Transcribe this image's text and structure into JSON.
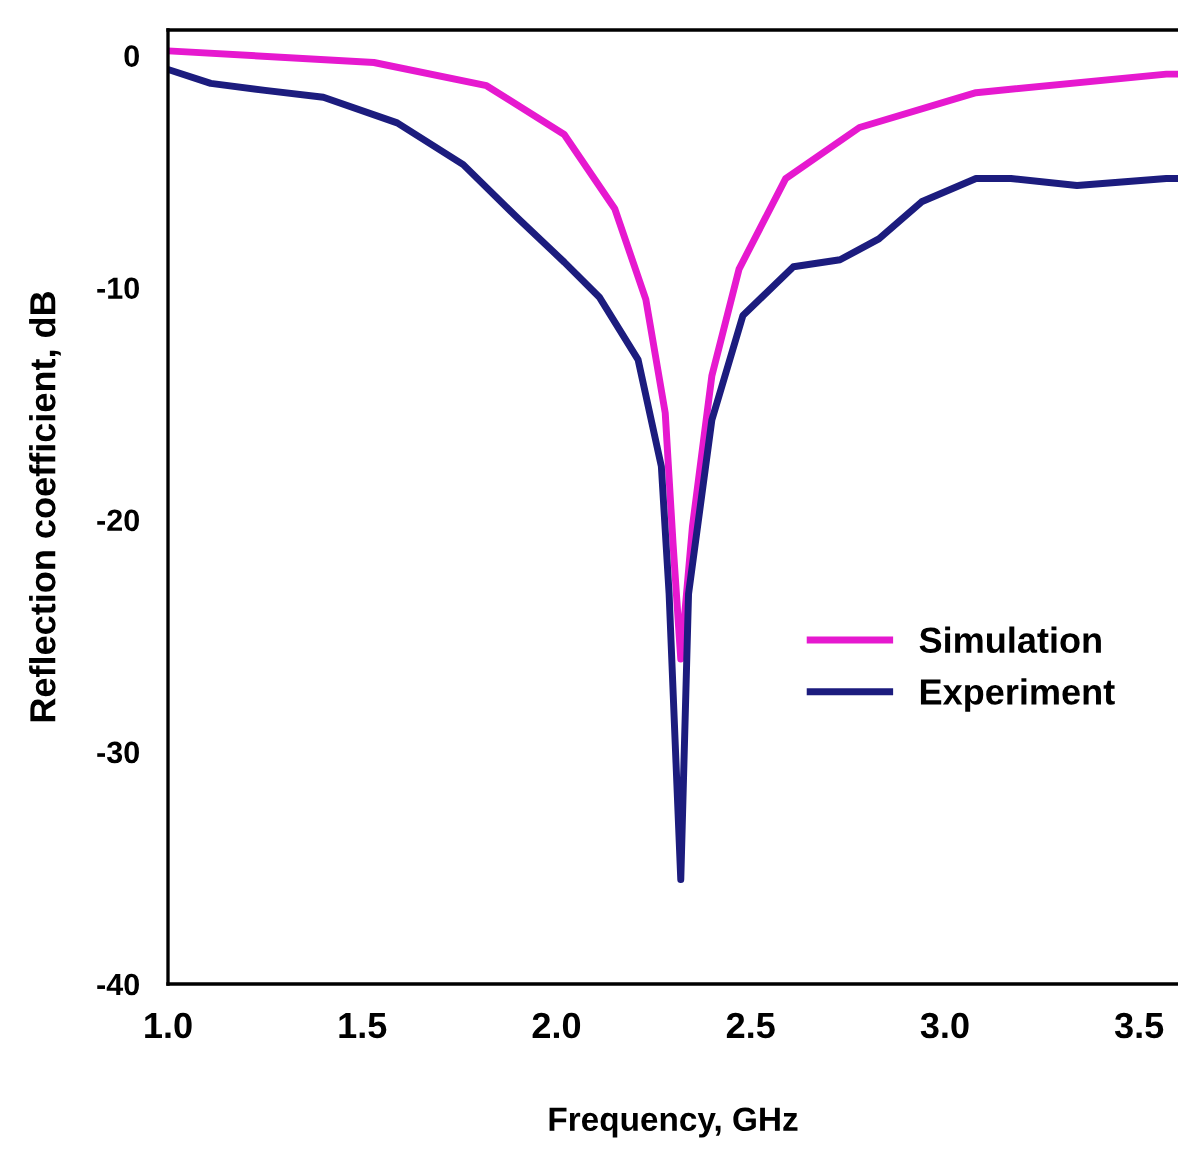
{
  "chart_data": {
    "type": "line",
    "xlabel": "Frequency, GHz",
    "ylabel": "Reflection coefficient, dB",
    "xlim": [
      1.0,
      3.6
    ],
    "ylim": [
      -40,
      1.1
    ],
    "xticks": [
      {
        "value": 1.0,
        "label": "1.0"
      },
      {
        "value": 1.5,
        "label": "1.5"
      },
      {
        "value": 2.0,
        "label": "2.0"
      },
      {
        "value": 2.5,
        "label": "2.5"
      },
      {
        "value": 3.0,
        "label": "3.0"
      },
      {
        "value": 3.5,
        "label": "3.5"
      }
    ],
    "yticks": [
      0,
      -10,
      -20,
      -30,
      -40
    ],
    "grid": false,
    "legend": "right",
    "line_style": "solid",
    "marker": "none",
    "series": [
      {
        "name": "Simulation",
        "color": "#e619cf",
        "x": [
          1.0,
          1.53,
          1.82,
          2.02,
          2.15,
          2.23,
          2.28,
          2.3,
          2.32,
          2.35,
          2.4,
          2.47,
          2.59,
          2.78,
          3.08,
          3.57,
          3.6
        ],
        "values": [
          0.2,
          -0.3,
          -1.3,
          -3.4,
          -6.6,
          -10.5,
          -15.4,
          -21,
          -26,
          -20.3,
          -13.8,
          -9.2,
          -5.3,
          -3.1,
          -1.6,
          -0.8,
          -0.8
        ]
      },
      {
        "name": "Experiment",
        "color": "#1c1c7e",
        "x": [
          1.0,
          1.11,
          1.25,
          1.4,
          1.59,
          1.76,
          1.9,
          2.02,
          2.11,
          2.21,
          2.27,
          2.29,
          2.32,
          2.34,
          2.4,
          2.48,
          2.61,
          2.73,
          2.83,
          2.94,
          3.08,
          3.17,
          3.34,
          3.57,
          3.6
        ],
        "values": [
          -0.6,
          -1.2,
          -1.5,
          -1.8,
          -2.9,
          -4.7,
          -7.0,
          -8.9,
          -10.4,
          -13.1,
          -17.7,
          -23.2,
          -35.5,
          -23.2,
          -15.7,
          -11.2,
          -9.1,
          -8.8,
          -7.9,
          -6.3,
          -5.3,
          -5.3,
          -5.6,
          -5.3,
          -5.3
        ]
      }
    ]
  }
}
